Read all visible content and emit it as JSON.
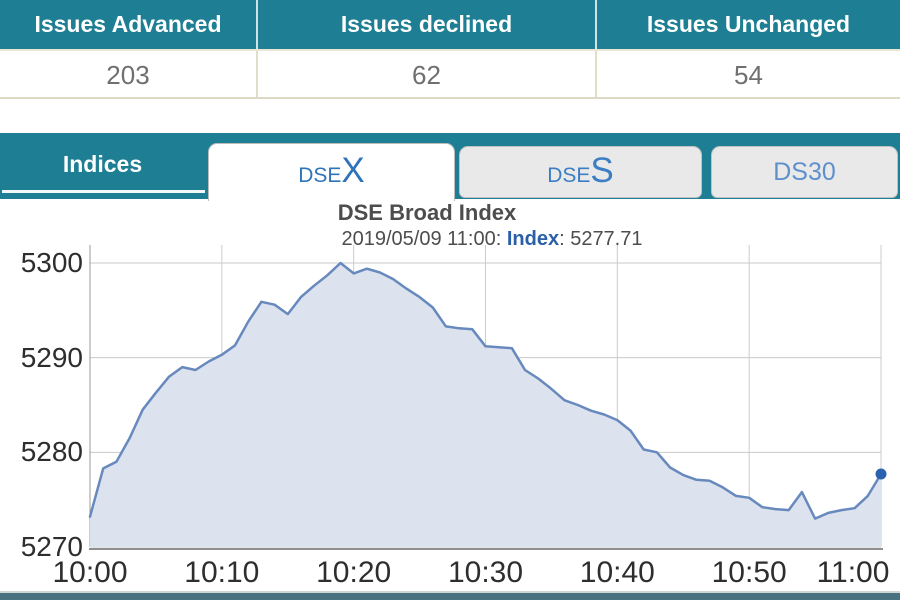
{
  "summary_table": {
    "columns": [
      {
        "header": "Issues Advanced",
        "value": "203"
      },
      {
        "header": "Issues declined",
        "value": "62"
      },
      {
        "header": "Issues Unchanged",
        "value": "54"
      }
    ]
  },
  "tabs": {
    "section_label": "Indices",
    "items": [
      {
        "label": "DSEX",
        "small": "DSE",
        "large": "X",
        "active": true
      },
      {
        "label": "DSES",
        "small": "DSE",
        "large": "S",
        "active": false
      },
      {
        "label": "DS30",
        "active": false
      }
    ]
  },
  "chart": {
    "title": "DSE Broad Index",
    "subtitle_prefix": "2019/05/09 11:00: ",
    "subtitle_index_label": "Index",
    "subtitle_value": ": 5277.71"
  },
  "chart_data": {
    "type": "area",
    "title": "DSE Broad Index",
    "subtitle": "2019/05/09 11:00: Index: 5277.71",
    "xlabel": "",
    "ylabel": "",
    "x_unit": "minutes after 10:00",
    "x": [
      0,
      1,
      2,
      3,
      4,
      5,
      6,
      7,
      8,
      9,
      10,
      11,
      12,
      13,
      14,
      15,
      16,
      17,
      18,
      19,
      20,
      21,
      22,
      23,
      24,
      25,
      26,
      27,
      28,
      29,
      30,
      31,
      32,
      33,
      34,
      35,
      36,
      37,
      38,
      39,
      40,
      41,
      42,
      43,
      44,
      45,
      46,
      47,
      48,
      49,
      50,
      51,
      52,
      53,
      54,
      55,
      56,
      57,
      58,
      59,
      60
    ],
    "values": [
      5273.2,
      5278.3,
      5279.0,
      5281.5,
      5284.5,
      5286.3,
      5288.0,
      5289.0,
      5288.7,
      5289.6,
      5290.3,
      5291.3,
      5293.8,
      5295.9,
      5295.6,
      5294.6,
      5296.4,
      5297.6,
      5298.7,
      5300.0,
      5298.9,
      5299.4,
      5299.0,
      5298.3,
      5297.3,
      5296.4,
      5295.3,
      5293.3,
      5293.1,
      5293.0,
      5291.2,
      5291.1,
      5291.0,
      5288.7,
      5287.8,
      5286.7,
      5285.5,
      5285.0,
      5284.4,
      5284.0,
      5283.4,
      5282.3,
      5280.3,
      5280.0,
      5278.4,
      5277.6,
      5277.1,
      5277.0,
      5276.3,
      5275.4,
      5275.2,
      5274.2,
      5274.0,
      5273.9,
      5275.8,
      5273.0,
      5273.6,
      5273.9,
      5274.1,
      5275.4,
      5277.71
    ],
    "last_value": 5277.71,
    "x_tick_labels": [
      "10:00",
      "10:10",
      "10:20",
      "10:30",
      "10:40",
      "10:50",
      "11:00"
    ],
    "x_tick_minutes": [
      0,
      10,
      20,
      30,
      40,
      50,
      60
    ],
    "y_ticks": [
      5270,
      5280,
      5290,
      5300
    ],
    "ylim": [
      5270,
      5302
    ],
    "xlim_minutes": [
      0,
      60
    ],
    "grid": true,
    "legend": "none",
    "line_color": "#6789bd",
    "fill_color": "#dce3ef",
    "marker_color": "#2b62ad",
    "last_point_marker": true
  },
  "colors": {
    "teal_header": "#1e7e93",
    "table_value_text": "#6f6f6f",
    "table_border_beige": "#dcd9c4",
    "tab_inactive_bg": "#e9e9e9",
    "tab_active_bg": "#ffffff",
    "tab_text_blue": "#2f74b9",
    "ds30_text_blue": "#5e90cc",
    "grid_line": "#c9c9c9",
    "axis_text": "#2e2e2e",
    "title_text": "#4d4d4d",
    "subtitle_index_blue": "#2b5fa8",
    "bottom_bar": "#48727f"
  }
}
